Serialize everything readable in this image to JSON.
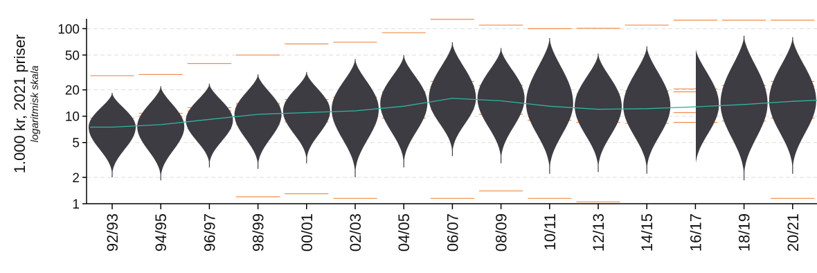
{
  "chart_data": {
    "type": "violin",
    "ylabel": "1.000 kr, 2021 priser",
    "ylabel_sub": "logaritmisk skala",
    "y_scale": "log",
    "ylim": [
      1,
      130
    ],
    "yticks": [
      1,
      2,
      5,
      10,
      20,
      50,
      100
    ],
    "ytick_labels": [
      "1",
      "2",
      "5",
      "10",
      "20",
      "50",
      "100"
    ],
    "grid": true,
    "categories": [
      "92/93",
      "94/95",
      "96/97",
      "98/99",
      "00/01",
      "02/03",
      "04/05",
      "06/07",
      "08/09",
      "10/11",
      "12/13",
      "14/15",
      "16/17",
      "18/19",
      "20/21"
    ],
    "violins": [
      {
        "min": 2.0,
        "max": 18.5,
        "mode": 7.5
      },
      {
        "min": 1.85,
        "max": 22,
        "mode": 7.6
      },
      {
        "min": 2.6,
        "max": 23.5,
        "mode": 9.0
      },
      {
        "min": 2.5,
        "max": 30,
        "mode": 10.5
      },
      {
        "min": 2.9,
        "max": 32,
        "mode": 11.5
      },
      {
        "min": 2.0,
        "max": 45,
        "mode": 12.0
      },
      {
        "min": 2.6,
        "max": 50,
        "mode": 14.0
      },
      {
        "min": 3.5,
        "max": 70,
        "mode": 16.0
      },
      {
        "min": 2.9,
        "max": 60,
        "mode": 16.0
      },
      {
        "min": 2.2,
        "max": 78,
        "mode": 14.0
      },
      {
        "min": 2.3,
        "max": 52,
        "mode": 13.0
      },
      {
        "min": 2.2,
        "max": 63,
        "mode": 13.0
      },
      {
        "min": 2.4,
        "max": 62,
        "mode": 13.5
      },
      {
        "min": 1.85,
        "max": 83,
        "mode": 14.0
      },
      {
        "min": 2.2,
        "max": 80,
        "mode": 15.0
      }
    ],
    "median_trend": [
      [
        0,
        7.5
      ],
      [
        1,
        8.0
      ],
      [
        2,
        9.2
      ],
      [
        3,
        10.5
      ],
      [
        4,
        11.0
      ],
      [
        5,
        11.5
      ],
      [
        6,
        13.0
      ],
      [
        7,
        16.0
      ],
      [
        8,
        15.0
      ],
      [
        9,
        13.0
      ],
      [
        10,
        12.0
      ],
      [
        11,
        12.2
      ],
      [
        12,
        12.8
      ],
      [
        13,
        13.6
      ],
      [
        14,
        14.8
      ]
    ],
    "percentile_series": [
      {
        "level": "p1",
        "values": [
          null,
          null,
          null,
          1.2,
          1.3,
          1.15,
          null,
          1.15,
          1.4,
          1.15,
          1.05,
          null,
          null,
          null,
          1.15
        ]
      },
      {
        "level": "p10",
        "values": [
          6.0,
          6.5,
          7.2,
          8.0,
          8.6,
          8.8,
          9.5,
          12.0,
          10.5,
          9.0,
          8.5,
          8.3,
          8.5,
          8.8,
          9.5
        ]
      },
      {
        "level": "p25",
        "values": [
          7.0,
          7.3,
          8.3,
          9.5,
          10.0,
          10.5,
          12.0,
          14.5,
          13.0,
          11.5,
          10.5,
          10.5,
          11.0,
          11.5,
          12.5
        ]
      },
      {
        "level": "p75",
        "values": [
          9.0,
          10.0,
          11.5,
          13.5,
          14.5,
          15.5,
          17.5,
          22.0,
          19.5,
          18.0,
          17.0,
          17.5,
          19.0,
          20.5,
          22.0
        ]
      },
      {
        "level": "p90",
        "values": [
          9.5,
          10.8,
          12.5,
          14.0,
          15.5,
          16.5,
          19.0,
          25.0,
          22.5,
          19.5,
          18.0,
          19.5,
          20.5,
          22.5,
          25.0
        ]
      },
      {
        "level": "p99",
        "values": [
          29,
          30,
          40,
          50,
          67,
          70,
          90,
          128,
          110,
          100,
          101,
          110,
          125,
          125,
          125
        ]
      }
    ],
    "colors": {
      "violin": "#3d3c42",
      "percentile": "#f08c4b",
      "median": "#2fb5a0",
      "grid": "#dddddd",
      "axis": "#000000"
    }
  }
}
